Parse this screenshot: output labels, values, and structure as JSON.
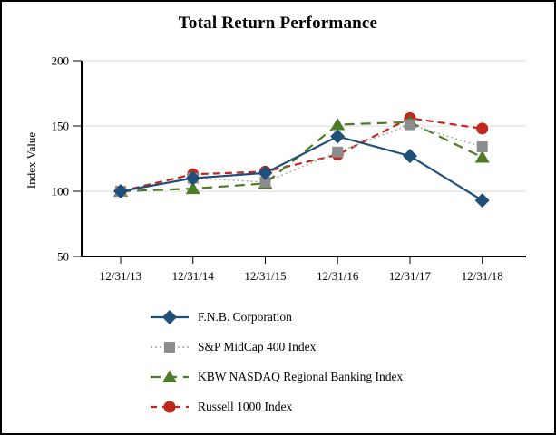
{
  "chart_data": {
    "type": "line",
    "title": "Total Return Performance",
    "ylabel": "Index Value",
    "xlabel": "",
    "x": [
      "12/31/13",
      "12/31/14",
      "12/31/15",
      "12/31/16",
      "12/31/17",
      "12/31/18"
    ],
    "ylim": [
      50,
      200
    ],
    "yticks": [
      50,
      100,
      150,
      200
    ],
    "grid": true,
    "legend_position": "bottom-left",
    "series": [
      {
        "name": "F.N.B. Corporation",
        "values": [
          100,
          110,
          114,
          142,
          127,
          93
        ],
        "color": "#1F4E79",
        "marker": "diamond",
        "line_style": "solid"
      },
      {
        "name": "S&P MidCap 400 Index",
        "values": [
          100,
          110,
          107,
          130,
          151,
          134
        ],
        "color": "#8C8C8C",
        "line_color": "#A6A6A6",
        "marker": "square",
        "line_style": "dotted"
      },
      {
        "name": "KBW NASDAQ Regional Banking Index",
        "values": [
          100,
          102,
          106,
          151,
          153,
          126
        ],
        "color": "#4F7A28",
        "marker": "triangle",
        "line_style": "dashed-long"
      },
      {
        "name": "Russell 1000 Index",
        "values": [
          100,
          113,
          115,
          128,
          156,
          148
        ],
        "color": "#C0281E",
        "marker": "circle",
        "line_style": "dashed"
      }
    ]
  },
  "colors": {
    "grid": "#D9D9D9",
    "axis": "#000000",
    "background": "#FFFFFF",
    "border": "#000000"
  }
}
